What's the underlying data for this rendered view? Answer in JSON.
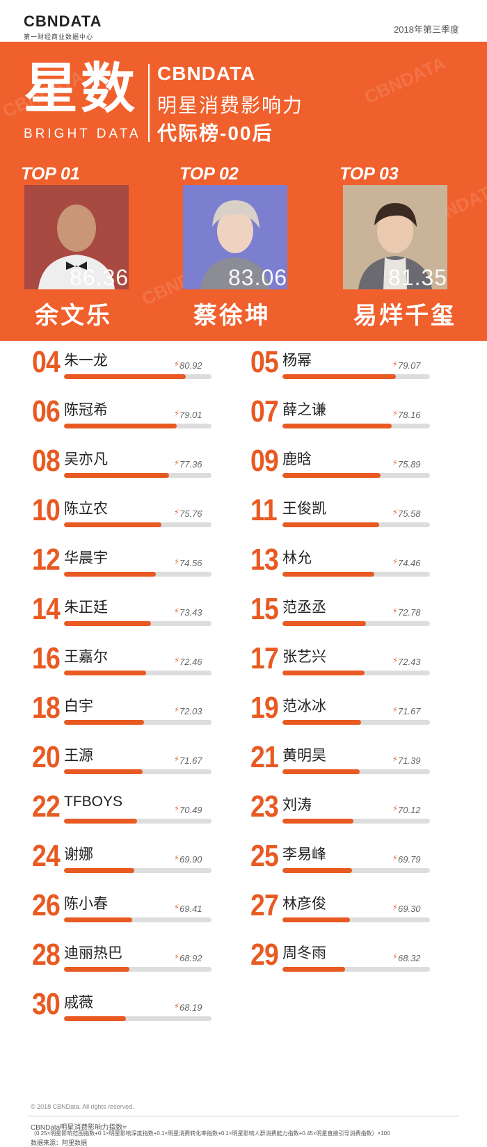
{
  "header": {
    "logo": "CBNDATA",
    "logo_sub": "第一财经商业数据中心",
    "season": "2018年第三季度"
  },
  "hero": {
    "big_title": "星数",
    "big_sub": "BRIGHT DATA",
    "brand": "CBNDATA",
    "title_line1": "明星消费影响力",
    "title_line2": "代际榜-00后",
    "watermark": "CBNDATA"
  },
  "top3": [
    {
      "label": "TOP 01",
      "score": "86.36",
      "name": "余文乐"
    },
    {
      "label": "TOP 02",
      "score": "83.06",
      "name": "蔡徐坤"
    },
    {
      "label": "TOP 03",
      "score": "81.35",
      "name": "易烊千玺"
    }
  ],
  "ranking": [
    {
      "rank": "04",
      "name": "朱一龙",
      "score": "80.92"
    },
    {
      "rank": "05",
      "name": "杨幂",
      "score": "79.07"
    },
    {
      "rank": "06",
      "name": "陈冠希",
      "score": "79.01"
    },
    {
      "rank": "07",
      "name": "薛之谦",
      "score": "78.16"
    },
    {
      "rank": "08",
      "name": "吴亦凡",
      "score": "77.36"
    },
    {
      "rank": "09",
      "name": "鹿晗",
      "score": "75.89"
    },
    {
      "rank": "10",
      "name": "陈立农",
      "score": "75.76"
    },
    {
      "rank": "11",
      "name": "王俊凯",
      "score": "75.58"
    },
    {
      "rank": "12",
      "name": "华晨宇",
      "score": "74.56"
    },
    {
      "rank": "13",
      "name": "林允",
      "score": "74.46"
    },
    {
      "rank": "14",
      "name": "朱正廷",
      "score": "73.43"
    },
    {
      "rank": "15",
      "name": "范丞丞",
      "score": "72.78"
    },
    {
      "rank": "16",
      "name": "王嘉尔",
      "score": "72.46"
    },
    {
      "rank": "17",
      "name": "张艺兴",
      "score": "72.43"
    },
    {
      "rank": "18",
      "name": "白宇",
      "score": "72.03"
    },
    {
      "rank": "19",
      "name": "范冰冰",
      "score": "71.67"
    },
    {
      "rank": "20",
      "name": "王源",
      "score": "71.67"
    },
    {
      "rank": "21",
      "name": "黄明昊",
      "score": "71.39"
    },
    {
      "rank": "22",
      "name": "TFBOYS",
      "score": "70.49"
    },
    {
      "rank": "23",
      "name": "刘涛",
      "score": "70.12"
    },
    {
      "rank": "24",
      "name": "谢娜",
      "score": "69.90"
    },
    {
      "rank": "25",
      "name": "李易峰",
      "score": "69.79"
    },
    {
      "rank": "26",
      "name": "陈小春",
      "score": "69.41"
    },
    {
      "rank": "27",
      "name": "林彦俊",
      "score": "69.30"
    },
    {
      "rank": "28",
      "name": "迪丽热巴",
      "score": "68.92"
    },
    {
      "rank": "29",
      "name": "周冬雨",
      "score": "68.32"
    },
    {
      "rank": "30",
      "name": "戚薇",
      "score": "68.19"
    }
  ],
  "footer": {
    "copyright": "© 2018 CBNData. All rights reserved.",
    "formula_title": "CBNData明星消费影响力指数=",
    "formula": "（0.25×明星影响范围指数+0.1×明星影响深度指数+0.1×明星消费转化率指数+0.1×明星影响人群消费能力指数+0.45×明星直接引导消费指数）×100",
    "source": "数据来源：阿里数据"
  },
  "colors": {
    "accent": "#f0602d",
    "bar_fill": "#e85a22",
    "bar_bg": "#dddddd"
  }
}
